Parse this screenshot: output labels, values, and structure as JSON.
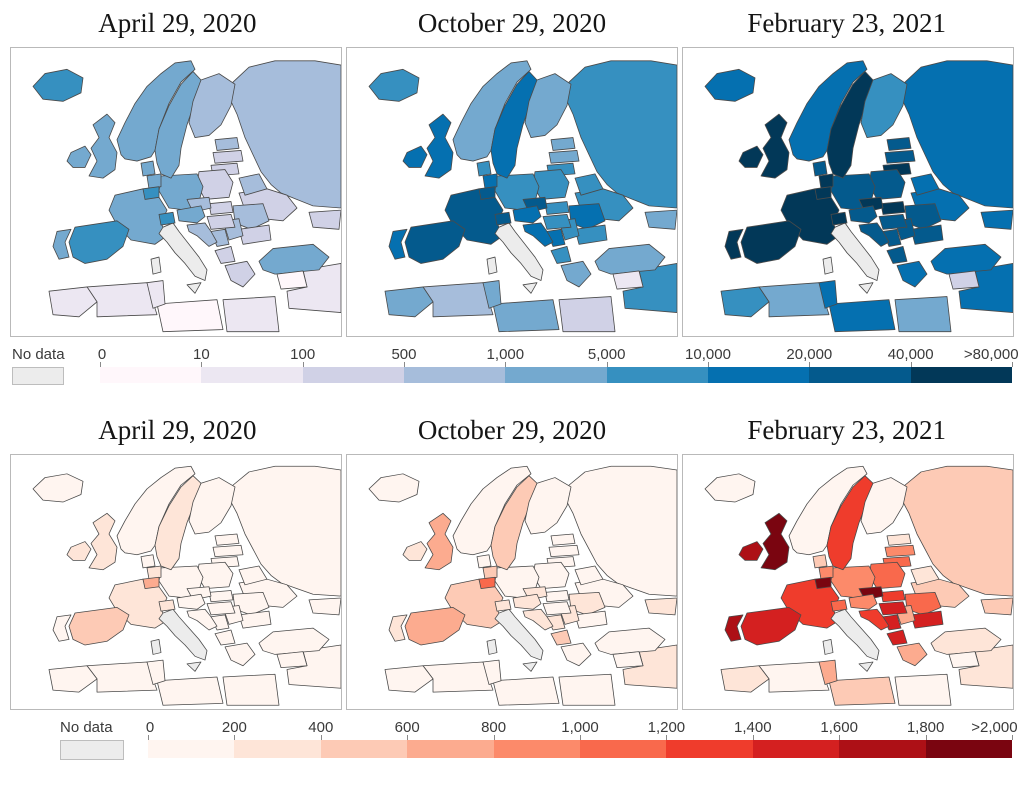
{
  "panels": [
    {
      "titles": [
        "April 29, 2020",
        "October 29, 2020",
        "February 23, 2021"
      ],
      "legend": {
        "no_data_label": "No data",
        "no_data_color": "#ececec",
        "tick_labels": [
          "0",
          "10",
          "100",
          "500",
          "1,000",
          "5,000",
          "10,000",
          "20,000",
          "40,000",
          ">80,000"
        ],
        "colors": [
          "#fff7fb",
          "#ece7f2",
          "#d0d1e6",
          "#a6bddb",
          "#74a9cf",
          "#3690c0",
          "#0570b0",
          "#045a8d",
          "#023858"
        ]
      },
      "country_fills": {
        "iceland": [
          "#3690c0",
          "#3690c0",
          "#0570b0"
        ],
        "ireland": [
          "#74a9cf",
          "#0570b0",
          "#023858"
        ],
        "uk": [
          "#74a9cf",
          "#0570b0",
          "#023858"
        ],
        "portugal": [
          "#74a9cf",
          "#0570b0",
          "#023858"
        ],
        "spain": [
          "#3690c0",
          "#045a8d",
          "#023858"
        ],
        "france": [
          "#74a9cf",
          "#045a8d",
          "#023858"
        ],
        "belgium": [
          "#3690c0",
          "#045a8d",
          "#023858"
        ],
        "netherlands": [
          "#74a9cf",
          "#0570b0",
          "#023858"
        ],
        "germany": [
          "#74a9cf",
          "#3690c0",
          "#045a8d"
        ],
        "denmark": [
          "#74a9cf",
          "#3690c0",
          "#045a8d"
        ],
        "norway": [
          "#74a9cf",
          "#74a9cf",
          "#0570b0"
        ],
        "sweden": [
          "#74a9cf",
          "#0570b0",
          "#023858"
        ],
        "finland": [
          "#a6bddb",
          "#74a9cf",
          "#3690c0"
        ],
        "estonia": [
          "#a6bddb",
          "#74a9cf",
          "#045a8d"
        ],
        "latvia": [
          "#d0d1e6",
          "#74a9cf",
          "#045a8d"
        ],
        "lithuania": [
          "#d0d1e6",
          "#3690c0",
          "#023858"
        ],
        "poland": [
          "#d0d1e6",
          "#3690c0",
          "#045a8d"
        ],
        "czechia": [
          "#a6bddb",
          "#045a8d",
          "#023858"
        ],
        "slovakia": [
          "#d0d1e6",
          "#3690c0",
          "#023858"
        ],
        "austria": [
          "#74a9cf",
          "#0570b0",
          "#045a8d"
        ],
        "switzerland": [
          "#3690c0",
          "#045a8d",
          "#023858"
        ],
        "hungary": [
          "#d0d1e6",
          "#3690c0",
          "#045a8d"
        ],
        "croatia": [
          "#a6bddb",
          "#0570b0",
          "#045a8d"
        ],
        "bosnia": [
          "#a6bddb",
          "#0570b0",
          "#045a8d"
        ],
        "serbia": [
          "#a6bddb",
          "#3690c0",
          "#045a8d"
        ],
        "albania_mk": [
          "#d0d1e6",
          "#3690c0",
          "#045a8d"
        ],
        "romania": [
          "#a6bddb",
          "#0570b0",
          "#045a8d"
        ],
        "bulgaria": [
          "#d0d1e6",
          "#3690c0",
          "#045a8d"
        ],
        "greece": [
          "#d0d1e6",
          "#74a9cf",
          "#0570b0"
        ],
        "belarus": [
          "#a6bddb",
          "#3690c0",
          "#0570b0"
        ],
        "ukraine": [
          "#d0d1e6",
          "#3690c0",
          "#0570b0"
        ],
        "russia": [
          "#a6bddb",
          "#3690c0",
          "#0570b0"
        ],
        "turkey": [
          "#74a9cf",
          "#74a9cf",
          "#0570b0"
        ],
        "caucasus": [
          "#d0d1e6",
          "#74a9cf",
          "#0570b0"
        ],
        "morocco": [
          "#ece7f2",
          "#74a9cf",
          "#3690c0"
        ],
        "algeria": [
          "#ece7f2",
          "#a6bddb",
          "#74a9cf"
        ],
        "tunisia": [
          "#ece7f2",
          "#74a9cf",
          "#0570b0"
        ],
        "libya": [
          "#fff7fb",
          "#74a9cf",
          "#0570b0"
        ],
        "egypt": [
          "#ece7f2",
          "#d0d1e6",
          "#74a9cf"
        ],
        "syria": [
          "#fff7fb",
          "#ece7f2",
          "#d0d1e6"
        ],
        "mideast": [
          "#ece7f2",
          "#3690c0",
          "#0570b0"
        ]
      }
    },
    {
      "titles": [
        "April 29, 2020",
        "October 29, 2020",
        "February 23, 2021"
      ],
      "legend": {
        "no_data_label": "No data",
        "no_data_color": "#ececec",
        "tick_labels": [
          "0",
          "200",
          "400",
          "600",
          "800",
          "1,000",
          "1,200",
          "1,400",
          "1,600",
          "1,800",
          ">2,000"
        ],
        "colors": [
          "#fff5f0",
          "#fee5d8",
          "#fdcab5",
          "#fcab8f",
          "#fc8a6a",
          "#f9694c",
          "#ef3c2c",
          "#d42020",
          "#ad1016",
          "#7a0510"
        ]
      },
      "country_fills": {
        "iceland": [
          "#fff5f0",
          "#fff5f0",
          "#fff5f0"
        ],
        "ireland": [
          "#fee5d8",
          "#fee5d8",
          "#ad1016"
        ],
        "uk": [
          "#fee5d8",
          "#fcab8f",
          "#7a0510"
        ],
        "portugal": [
          "#fff5f0",
          "#fee5d8",
          "#ad1016"
        ],
        "spain": [
          "#fdcab5",
          "#fcab8f",
          "#d42020"
        ],
        "france": [
          "#fee5d8",
          "#fdcab5",
          "#ef3c2c"
        ],
        "belgium": [
          "#fcab8f",
          "#f9694c",
          "#7a0510"
        ],
        "netherlands": [
          "#fee5d8",
          "#fdcab5",
          "#fc8a6a"
        ],
        "germany": [
          "#fff5f0",
          "#fff5f0",
          "#fc8a6a"
        ],
        "denmark": [
          "#fff5f0",
          "#fff5f0",
          "#fdcab5"
        ],
        "norway": [
          "#fff5f0",
          "#fff5f0",
          "#fff5f0"
        ],
        "sweden": [
          "#fee5d8",
          "#fdcab5",
          "#ef3c2c"
        ],
        "finland": [
          "#fff5f0",
          "#fff5f0",
          "#fff5f0"
        ],
        "estonia": [
          "#fff5f0",
          "#fff5f0",
          "#fee5d8"
        ],
        "latvia": [
          "#fff5f0",
          "#fff5f0",
          "#fc8a6a"
        ],
        "lithuania": [
          "#fff5f0",
          "#fff5f0",
          "#f9694c"
        ],
        "poland": [
          "#fff5f0",
          "#fff5f0",
          "#f9694c"
        ],
        "czechia": [
          "#fff5f0",
          "#fee5d8",
          "#7a0510"
        ],
        "slovakia": [
          "#fff5f0",
          "#fff5f0",
          "#ef3c2c"
        ],
        "austria": [
          "#fff5f0",
          "#fee5d8",
          "#fc8a6a"
        ],
        "switzerland": [
          "#fee5d8",
          "#fee5d8",
          "#f9694c"
        ],
        "hungary": [
          "#fff5f0",
          "#fff5f0",
          "#d42020"
        ],
        "croatia": [
          "#fff5f0",
          "#fee5d8",
          "#ef3c2c"
        ],
        "bosnia": [
          "#fff5f0",
          "#fee5d8",
          "#d42020"
        ],
        "serbia": [
          "#fff5f0",
          "#fee5d8",
          "#fcab8f"
        ],
        "albania_mk": [
          "#fff5f0",
          "#fdcab5",
          "#d42020"
        ],
        "romania": [
          "#fff5f0",
          "#fee5d8",
          "#f9694c"
        ],
        "bulgaria": [
          "#fff5f0",
          "#fff5f0",
          "#d42020"
        ],
        "greece": [
          "#fff5f0",
          "#fff5f0",
          "#fcab8f"
        ],
        "belarus": [
          "#fff5f0",
          "#fff5f0",
          "#fee5d8"
        ],
        "ukraine": [
          "#fff5f0",
          "#fff5f0",
          "#fdcab5"
        ],
        "russia": [
          "#fff5f0",
          "#fff5f0",
          "#fdcab5"
        ],
        "turkey": [
          "#fff5f0",
          "#fff5f0",
          "#fee5d8"
        ],
        "caucasus": [
          "#fff5f0",
          "#fee5d8",
          "#fdcab5"
        ],
        "morocco": [
          "#fff5f0",
          "#fff5f0",
          "#fee5d8"
        ],
        "algeria": [
          "#fff5f0",
          "#fff5f0",
          "#fff5f0"
        ],
        "tunisia": [
          "#fff5f0",
          "#fff5f0",
          "#fcab8f"
        ],
        "libya": [
          "#fff5f0",
          "#fff5f0",
          "#fdcab5"
        ],
        "egypt": [
          "#fff5f0",
          "#fff5f0",
          "#fff5f0"
        ],
        "syria": [
          "#fff5f0",
          "#fff5f0",
          "#fff5f0"
        ],
        "mideast": [
          "#fff5f0",
          "#fee5d8",
          "#fee5d8"
        ]
      }
    }
  ]
}
